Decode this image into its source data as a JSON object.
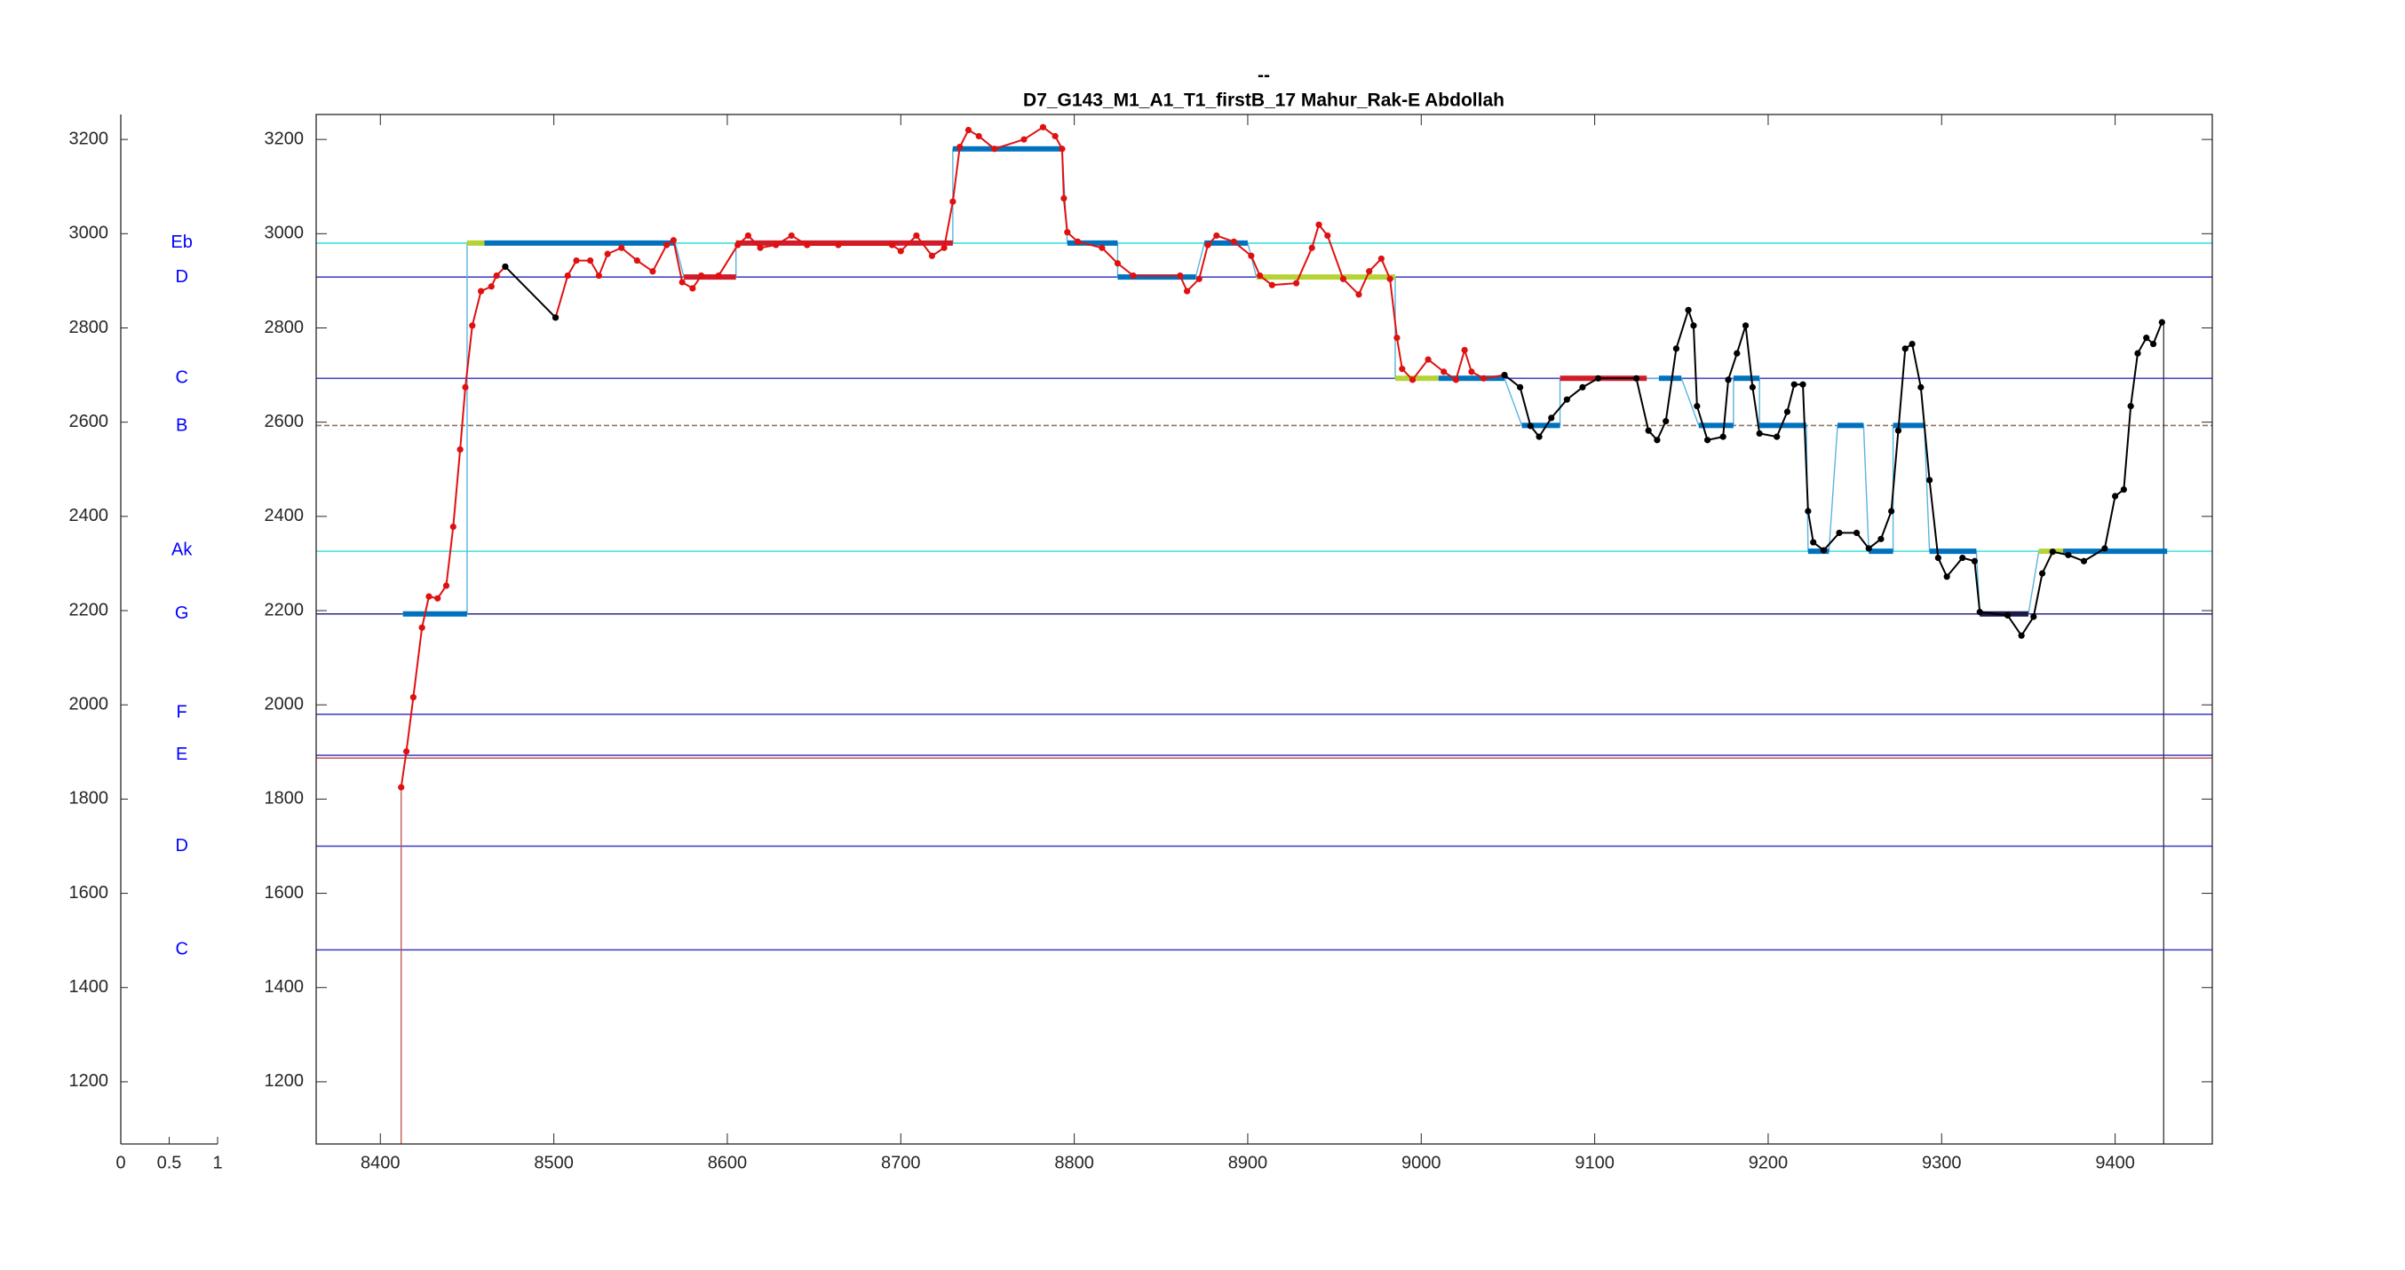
{
  "chart_data": [
    {
      "type": "notes",
      "xlim": [
        0,
        1
      ],
      "xticks": [
        0,
        0.5,
        1
      ],
      "ylim": [
        1068,
        3253
      ],
      "yticks": [
        1200,
        1400,
        1600,
        1800,
        2000,
        2200,
        2400,
        2600,
        2800,
        3000,
        3200
      ],
      "color": "#0000ff",
      "notes": [
        {
          "label": "Eb",
          "value": 2980
        },
        {
          "label": "D",
          "value": 2907
        },
        {
          "label": "C",
          "value": 2693
        },
        {
          "label": "B",
          "value": 2591
        },
        {
          "label": "Ak",
          "value": 2328
        },
        {
          "label": "G",
          "value": 2193
        },
        {
          "label": "F",
          "value": 1983
        },
        {
          "label": "E",
          "value": 1894
        },
        {
          "label": "D",
          "value": 1700
        },
        {
          "label": "C",
          "value": 1480
        }
      ]
    },
    {
      "type": "line",
      "title": "--",
      "subtitle": "D7_G143_M1_A1_T1_firstB_17 Mahur_Rak-E Abdollah",
      "xlim": [
        8363,
        9456
      ],
      "xticks": [
        8400,
        8500,
        8600,
        8700,
        8800,
        8900,
        9000,
        9100,
        9200,
        9300,
        9400
      ],
      "ylim": [
        1068,
        3253
      ],
      "yticks": [
        1200,
        1400,
        1600,
        1800,
        2000,
        2200,
        2400,
        2600,
        2800,
        3000,
        3200
      ],
      "reference_lines": [
        {
          "value": 2980,
          "color": "#40e0e0"
        },
        {
          "value": 2908,
          "color": "#4646c8"
        },
        {
          "value": 2693,
          "color": "#4646c8"
        },
        {
          "value": 2593,
          "color": "#8a7660",
          "style": "dashed"
        },
        {
          "value": 2326,
          "color": "#40e0e0"
        },
        {
          "value": 2193,
          "color": "#2a2a8a"
        },
        {
          "value": 1980,
          "color": "#4646c8"
        },
        {
          "value": 1893,
          "color": "#4646c8"
        },
        {
          "value": 1887,
          "color": "#d06060"
        },
        {
          "value": 1700,
          "color": "#4646c8"
        },
        {
          "value": 1480,
          "color": "#4646c8"
        }
      ],
      "vertical_lines": [
        {
          "x": 8412,
          "top": 1825,
          "color": "#c0504d"
        },
        {
          "x": 9428,
          "top": 2812,
          "color": "#333333"
        }
      ],
      "step_color": "#5ab4e0",
      "segments": [
        {
          "start": 8413,
          "end": 8450,
          "value": 2193,
          "color": "#0072bd"
        },
        {
          "start": 8450,
          "end": 8460,
          "value": 2980,
          "color": "#b5d334"
        },
        {
          "start": 8460,
          "end": 8570,
          "value": 2980,
          "color": "#0072bd"
        },
        {
          "start": 8575,
          "end": 8605,
          "value": 2908,
          "color": "#d01c2a"
        },
        {
          "start": 8605,
          "end": 8730,
          "value": 2980,
          "color": "#d01c2a"
        },
        {
          "start": 8730,
          "end": 8793,
          "value": 3180,
          "color": "#0072bd"
        },
        {
          "start": 8796,
          "end": 8825,
          "value": 2980,
          "color": "#0072bd"
        },
        {
          "start": 8825,
          "end": 8870,
          "value": 2908,
          "color": "#0072bd"
        },
        {
          "start": 8875,
          "end": 8900,
          "value": 2980,
          "color": "#0072bd"
        },
        {
          "start": 8905,
          "end": 8985,
          "value": 2908,
          "color": "#b5d334"
        },
        {
          "start": 8985,
          "end": 9010,
          "value": 2693,
          "color": "#b5d334"
        },
        {
          "start": 9010,
          "end": 9048,
          "value": 2693,
          "color": "#0072bd"
        },
        {
          "start": 9058,
          "end": 9080,
          "value": 2593,
          "color": "#0072bd"
        },
        {
          "start": 9080,
          "end": 9130,
          "value": 2693,
          "color": "#d01c2a"
        },
        {
          "start": 9137,
          "end": 9150,
          "value": 2693,
          "color": "#0072bd"
        },
        {
          "start": 9160,
          "end": 9180,
          "value": 2593,
          "color": "#0072bd"
        },
        {
          "start": 9180,
          "end": 9195,
          "value": 2693,
          "color": "#0072bd"
        },
        {
          "start": 9195,
          "end": 9222,
          "value": 2593,
          "color": "#0072bd"
        },
        {
          "start": 9223,
          "end": 9235,
          "value": 2326,
          "color": "#0072bd"
        },
        {
          "start": 9240,
          "end": 9255,
          "value": 2593,
          "color": "#0072bd"
        },
        {
          "start": 9258,
          "end": 9272,
          "value": 2326,
          "color": "#0072bd"
        },
        {
          "start": 9272,
          "end": 9290,
          "value": 2593,
          "color": "#0072bd"
        },
        {
          "start": 9293,
          "end": 9320,
          "value": 2326,
          "color": "#0072bd"
        },
        {
          "start": 9322,
          "end": 9350,
          "value": 2193,
          "color": "#1a1a4d"
        },
        {
          "start": 9356,
          "end": 9370,
          "value": 2326,
          "color": "#b5d334"
        },
        {
          "start": 9370,
          "end": 9430,
          "value": 2326,
          "color": "#0072bd"
        }
      ],
      "series": [
        {
          "color": "#e01010",
          "x": [
            8412,
            8415,
            8419,
            8424,
            8428,
            8433,
            8438,
            8442,
            8446,
            8449,
            8453,
            8458,
            8464,
            8467,
            8472,
            null,
            8501,
            8508,
            8513,
            8521,
            8526,
            8531,
            8539,
            8548,
            8557,
            8565,
            8569,
            8574,
            8580,
            8585,
            8595,
            8606,
            8612,
            8619,
            8628,
            8637,
            8646,
            8664,
            8695,
            8700,
            8709,
            8718,
            8725,
            8730,
            8734,
            8739,
            8745,
            8754,
            8771,
            8782,
            8789,
            8793,
            8794,
            8796,
            8802,
            8816,
            8825,
            8834,
            8861,
            8865,
            8872,
            8877,
            8882,
            8892,
            8902,
            8907,
            8914,
            8928,
            8937,
            8941,
            8946,
            8955,
            8964,
            8970,
            8977,
            8982,
            8986,
            8989,
            8995,
            9004,
            9013,
            9020,
            9025,
            9029,
            9036,
            9048
          ],
          "values": [
            1825,
            1901,
            2016,
            2164,
            2230,
            2226,
            2253,
            2378,
            2542,
            2674,
            2805,
            2878,
            2888,
            2911,
            2930,
            null,
            2822,
            2911,
            2943,
            2943,
            2911,
            2957,
            2970,
            2943,
            2920,
            2976,
            2986,
            2897,
            2884,
            2911,
            2911,
            2976,
            2996,
            2970,
            2976,
            2996,
            2976,
            2976,
            2976,
            2963,
            2996,
            2953,
            2970,
            3068,
            3184,
            3220,
            3207,
            3180,
            3200,
            3226,
            3207,
            3180,
            3075,
            3003,
            2983,
            2970,
            2937,
            2911,
            2911,
            2878,
            2904,
            2976,
            2996,
            2983,
            2953,
            2911,
            2891,
            2895,
            2970,
            3019,
            2996,
            2904,
            2871,
            2920,
            2947,
            2904,
            2779,
            2713,
            2690,
            2733,
            2707,
            2690,
            2753,
            2707,
            2693,
            2700
          ]
        },
        {
          "color": "#000000",
          "x": [
            8472,
            8501,
            null,
            9048,
            9057,
            9063,
            9068,
            9075,
            9084,
            9093,
            9102,
            9124,
            9131,
            9136,
            9141,
            9147,
            9154,
            9157,
            9159,
            9165,
            9174,
            9177,
            9182,
            9187,
            9191,
            9195,
            9205,
            9211,
            9215,
            9220,
            9223,
            9226,
            9232,
            9241,
            9251,
            9258,
            9265,
            9271,
            9275,
            9279,
            9283,
            9288,
            9293,
            9298,
            9303,
            9312,
            9319,
            9322,
            9338,
            9346,
            9353,
            9358,
            9364,
            9373,
            9382,
            9394,
            9400,
            9405,
            9409,
            9413,
            9418,
            9422,
            9427
          ],
          "values": [
            2930,
            2822,
            null,
            2700,
            2674,
            2592,
            2569,
            2609,
            2648,
            2674,
            2693,
            2693,
            2582,
            2562,
            2602,
            2756,
            2838,
            2805,
            2634,
            2562,
            2569,
            2690,
            2746,
            2805,
            2674,
            2576,
            2569,
            2622,
            2680,
            2680,
            2411,
            2345,
            2328,
            2365,
            2365,
            2332,
            2352,
            2411,
            2582,
            2756,
            2766,
            2674,
            2477,
            2312,
            2272,
            2312,
            2305,
            2197,
            2190,
            2147,
            2187,
            2279,
            2325,
            2318,
            2305,
            2332,
            2443,
            2457,
            2634,
            2746,
            2779,
            2766,
            2812
          ]
        }
      ]
    }
  ]
}
